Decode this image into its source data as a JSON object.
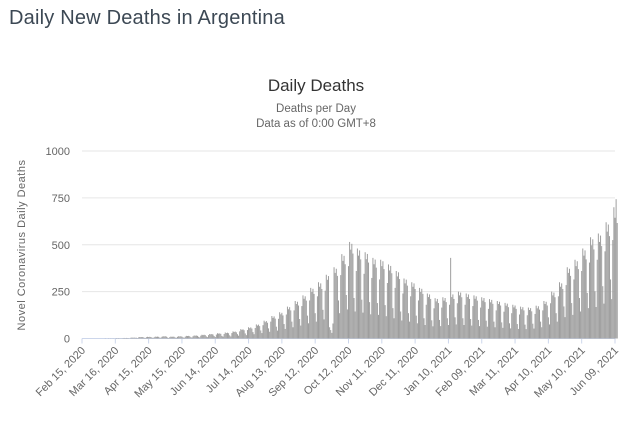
{
  "page": {
    "title": "Daily New Deaths in Argentina"
  },
  "colors": {
    "page_title": "#3c4854",
    "chart_title": "#333333",
    "subtitle": "#666666",
    "axis_label": "#666666",
    "bar": "#9a9a9a",
    "gridline": "#e6e6e6",
    "axis_line": "#ccd6eb",
    "background": "#ffffff"
  },
  "chart_data": {
    "type": "bar",
    "title": "Daily Deaths",
    "subtitle_line1": "Deaths per Day",
    "subtitle_line2": "Data as of 0:00 GMT+8",
    "ylabel": "Novel Coronavirus Daily Deaths",
    "xlabel": "",
    "ylim": [
      0,
      1000
    ],
    "yticks": [
      0,
      250,
      500,
      750,
      1000
    ],
    "grid": "horizontal",
    "legend": "none",
    "start_date": "2020-02-15",
    "x_unit": "day",
    "xtick_interval_days": 30,
    "xtick_labels": [
      "Feb 15, 2020",
      "Mar 16, 2020",
      "Apr 15, 2020",
      "May 15, 2020",
      "Jun 14, 2020",
      "Jul 14, 2020",
      "Aug 13, 2020",
      "Sep 12, 2020",
      "Oct 12, 2020",
      "Nov 11, 2020",
      "Dec 11, 2020",
      "Jan 10, 2021",
      "Feb 09, 2021",
      "Mar 11, 2021",
      "Apr 10, 2021",
      "May 10, 2021",
      "Jun 09, 2021"
    ],
    "values": [
      0,
      0,
      0,
      0,
      0,
      0,
      0,
      0,
      0,
      0,
      0,
      0,
      0,
      0,
      0,
      0,
      0,
      0,
      0,
      0,
      0,
      1,
      0,
      0,
      1,
      0,
      1,
      0,
      1,
      0,
      1,
      2,
      1,
      2,
      1,
      1,
      1,
      2,
      3,
      2,
      3,
      2,
      2,
      1,
      4,
      5,
      4,
      5,
      4,
      4,
      2,
      6,
      8,
      7,
      8,
      7,
      4,
      3,
      7,
      9,
      8,
      9,
      8,
      5,
      3,
      7,
      10,
      9,
      10,
      9,
      5,
      4,
      9,
      12,
      11,
      12,
      10,
      5,
      3,
      7,
      10,
      9,
      10,
      9,
      5,
      4,
      9,
      12,
      11,
      12,
      10,
      6,
      4,
      10,
      14,
      13,
      14,
      12,
      7,
      5,
      12,
      16,
      15,
      16,
      14,
      9,
      6,
      15,
      20,
      18,
      20,
      18,
      11,
      7,
      18,
      24,
      22,
      24,
      21,
      13,
      8,
      21,
      28,
      26,
      27,
      25,
      14,
      10,
      24,
      32,
      29,
      31,
      28,
      17,
      11,
      29,
      38,
      35,
      37,
      33,
      23,
      15,
      38,
      50,
      46,
      49,
      44,
      27,
      18,
      45,
      60,
      55,
      59,
      53,
      34,
      23,
      56,
      75,
      69,
      74,
      66,
      43,
      29,
      71,
      95,
      87,
      93,
      84,
      54,
      36,
      90,
      120,
      110,
      118,
      106,
      63,
      42,
      105,
      140,
      129,
      137,
      123,
      77,
      51,
      128,
      170,
      156,
      167,
      150,
      90,
      60,
      150,
      200,
      184,
      196,
      176,
      104,
      69,
      173,
      230,
      212,
      225,
      202,
      122,
      81,
      203,
      270,
      248,
      265,
      238,
      135,
      90,
      225,
      300,
      276,
      294,
      264,
      153,
      102,
      255,
      340,
      313,
      333,
      60,
      45,
      30,
      80,
      380,
      350,
      372,
      334,
      203,
      135,
      338,
      450,
      414,
      441,
      396,
      232,
      155,
      386,
      515,
      474,
      505,
      453,
      216,
      144,
      360,
      480,
      442,
      470,
      422,
      207,
      138,
      345,
      460,
      423,
      451,
      405,
      194,
      129,
      323,
      430,
      396,
      421,
      378,
      189,
      126,
      315,
      420,
      386,
      412,
      370,
      178,
      119,
      296,
      395,
      363,
      387,
      348,
      162,
      108,
      270,
      360,
      331,
      353,
      317,
      144,
      96,
      240,
      320,
      294,
      314,
      282,
      135,
      90,
      225,
      300,
      276,
      294,
      264,
      122,
      81,
      203,
      270,
      248,
      265,
      238,
      108,
      72,
      180,
      240,
      221,
      235,
      211,
      97,
      65,
      161,
      215,
      198,
      211,
      189,
      99,
      66,
      165,
      220,
      202,
      216,
      194,
      108,
      72,
      180,
      430,
      221,
      235,
      211,
      113,
      75,
      188,
      250,
      230,
      245,
      220,
      108,
      72,
      180,
      240,
      221,
      235,
      211,
      104,
      69,
      173,
      230,
      212,
      225,
      202,
      99,
      66,
      165,
      220,
      202,
      216,
      194,
      95,
      63,
      158,
      210,
      193,
      206,
      185,
      90,
      60,
      150,
      200,
      184,
      196,
      176,
      86,
      57,
      143,
      190,
      175,
      186,
      167,
      81,
      54,
      135,
      180,
      166,
      176,
      158,
      77,
      51,
      128,
      170,
      156,
      167,
      150,
      74,
      50,
      124,
      165,
      152,
      162,
      145,
      79,
      53,
      131,
      175,
      161,
      172,
      154,
      90,
      60,
      150,
      200,
      184,
      196,
      176,
      113,
      75,
      188,
      250,
      230,
      245,
      220,
      135,
      90,
      225,
      300,
      276,
      294,
      264,
      171,
      114,
      285,
      380,
      350,
      372,
      334,
      189,
      126,
      315,
      420,
      386,
      412,
      370,
      216,
      144,
      360,
      480,
      442,
      470,
      422,
      243,
      162,
      405,
      540,
      497,
      529,
      475,
      252,
      168,
      420,
      560,
      515,
      549,
      493,
      279,
      186,
      465,
      620,
      570,
      608,
      546,
      315,
      210,
      525,
      700,
      644,
      743,
      616
    ]
  }
}
